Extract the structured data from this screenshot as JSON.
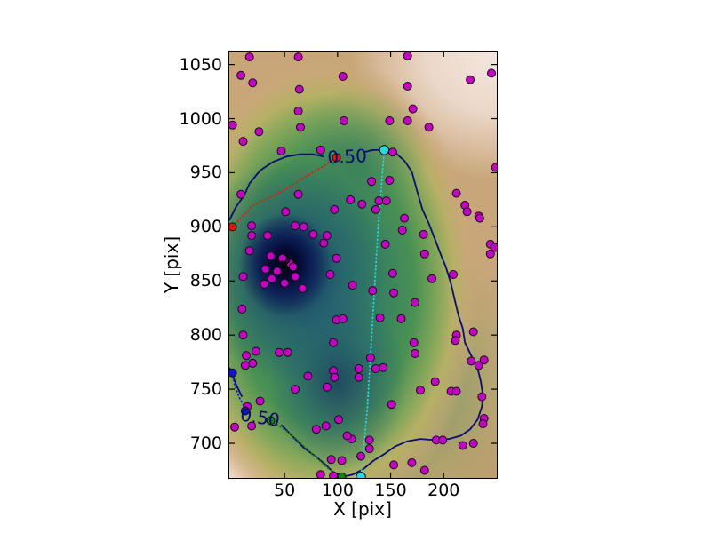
{
  "figure": {
    "background": "#ffffff"
  },
  "chart_data": {
    "type": "scatter",
    "title": "",
    "xlabel": "X [pix]",
    "ylabel": "Y [pix]",
    "xlim": [
      -2,
      250
    ],
    "ylim": [
      668,
      1062
    ],
    "x_ticks": [
      50,
      100,
      150,
      200
    ],
    "y_ticks": [
      700,
      750,
      800,
      850,
      900,
      950,
      1000,
      1050
    ],
    "grid": false,
    "legend": "none",
    "background_style": "2D kernel-density heatmap, gist_earth-reversed colormap (pink/tan = low density, green = mid, dark navy = high)",
    "density_peaks": [
      {
        "x": 51,
        "y": 865,
        "strength": "primary"
      },
      {
        "x": 100,
        "y": 760,
        "strength": "secondary"
      }
    ],
    "colors": {
      "point_fill": "#c303c3",
      "point_edge": "#1a0a1a",
      "contour": "#0c0c70",
      "contour_label": "#0c0c70",
      "red_marker": "#f21405",
      "cyan_marker": "#27d8e5",
      "blue_marker": "#1313cf",
      "green_marker": "#0f8510",
      "x_marker": "#000000",
      "axis": "#000000"
    },
    "points": [
      [
        17,
        1057
      ],
      [
        63,
        1057
      ],
      [
        9,
        1040
      ],
      [
        20,
        1033
      ],
      [
        64,
        1027
      ],
      [
        105,
        1039
      ],
      [
        63,
        1007
      ],
      [
        106,
        998
      ],
      [
        65,
        992
      ],
      [
        26,
        988
      ],
      [
        1,
        994
      ],
      [
        11,
        979
      ],
      [
        47,
        970
      ],
      [
        84,
        971
      ],
      [
        9,
        930
      ],
      [
        63,
        930
      ],
      [
        166,
        1058
      ],
      [
        225,
        1036
      ],
      [
        245,
        1042
      ],
      [
        166,
        1030
      ],
      [
        171,
        1009
      ],
      [
        149,
        998
      ],
      [
        166,
        998
      ],
      [
        186,
        992
      ],
      [
        152,
        969
      ],
      [
        132,
        942
      ],
      [
        149,
        943
      ],
      [
        212,
        931
      ],
      [
        220,
        920
      ],
      [
        233,
        910
      ],
      [
        244,
        884
      ],
      [
        248,
        881
      ],
      [
        249,
        955
      ],
      [
        228,
        803
      ],
      [
        51,
        914
      ],
      [
        97,
        916
      ],
      [
        112,
        925
      ],
      [
        123,
        921
      ],
      [
        19,
        901
      ],
      [
        60,
        901
      ],
      [
        68,
        900
      ],
      [
        77,
        893
      ],
      [
        19,
        892
      ],
      [
        34,
        892
      ],
      [
        90,
        892
      ],
      [
        87,
        885
      ],
      [
        17,
        878
      ],
      [
        37,
        873
      ],
      [
        48,
        871
      ],
      [
        55,
        866
      ],
      [
        58,
        863
      ],
      [
        32,
        861
      ],
      [
        43,
        859
      ],
      [
        38,
        852
      ],
      [
        50,
        848
      ],
      [
        60,
        854
      ],
      [
        11,
        854
      ],
      [
        31,
        847
      ],
      [
        67,
        843
      ],
      [
        99,
        871
      ],
      [
        93,
        856
      ],
      [
        114,
        846
      ],
      [
        10,
        824
      ],
      [
        99,
        814
      ],
      [
        105,
        815
      ],
      [
        11,
        800
      ],
      [
        139,
        924
      ],
      [
        146,
        924
      ],
      [
        136,
        916
      ],
      [
        222,
        914
      ],
      [
        234,
        908
      ],
      [
        163,
        908
      ],
      [
        161,
        897
      ],
      [
        181,
        893
      ],
      [
        145,
        884
      ],
      [
        182,
        875
      ],
      [
        244,
        875
      ],
      [
        152,
        857
      ],
      [
        189,
        852
      ],
      [
        209,
        856
      ],
      [
        133,
        841
      ],
      [
        153,
        839
      ],
      [
        173,
        830
      ],
      [
        140,
        816
      ],
      [
        160,
        815
      ],
      [
        212,
        800
      ],
      [
        14,
        781
      ],
      [
        23,
        785
      ],
      [
        45,
        784
      ],
      [
        53,
        784
      ],
      [
        96,
        793
      ],
      [
        20,
        774
      ],
      [
        13,
        772
      ],
      [
        96,
        767
      ],
      [
        120,
        769
      ],
      [
        72,
        762
      ],
      [
        97,
        761
      ],
      [
        120,
        761
      ],
      [
        90,
        752
      ],
      [
        60,
        750
      ],
      [
        27,
        739
      ],
      [
        15,
        734
      ],
      [
        3,
        715
      ],
      [
        19,
        716
      ],
      [
        80,
        713
      ],
      [
        89,
        716
      ],
      [
        101,
        722
      ],
      [
        113,
        704
      ],
      [
        109,
        707
      ],
      [
        94,
        685
      ],
      [
        104,
        684
      ],
      [
        122,
        688
      ],
      [
        84,
        671
      ],
      [
        96,
        670
      ],
      [
        131,
        779
      ],
      [
        172,
        793
      ],
      [
        211,
        795
      ],
      [
        173,
        783
      ],
      [
        136,
        769
      ],
      [
        143,
        770
      ],
      [
        226,
        776
      ],
      [
        233,
        772
      ],
      [
        238,
        777
      ],
      [
        192,
        757
      ],
      [
        178,
        749
      ],
      [
        207,
        748
      ],
      [
        212,
        748
      ],
      [
        236,
        743
      ],
      [
        151,
        736
      ],
      [
        238,
        723
      ],
      [
        237,
        718
      ],
      [
        193,
        703
      ],
      [
        199,
        703
      ],
      [
        218,
        698
      ],
      [
        228,
        700
      ],
      [
        130,
        703
      ],
      [
        130,
        695
      ],
      [
        153,
        680
      ],
      [
        170,
        682
      ],
      [
        182,
        675
      ]
    ],
    "contour": {
      "level": 0.5,
      "level_label": "0.50",
      "segments": [
        [
          [
            -2,
            906
          ],
          [
            4,
            918
          ],
          [
            12,
            929
          ],
          [
            17,
            940
          ],
          [
            27,
            952
          ],
          [
            39,
            960
          ],
          [
            52,
            965
          ],
          [
            65,
            967
          ],
          [
            77,
            967
          ],
          [
            87,
            965
          ]
        ],
        [
          [
            125,
            969
          ],
          [
            133,
            971
          ],
          [
            141,
            971
          ],
          [
            149,
            969
          ],
          [
            155,
            968
          ],
          [
            163,
            961
          ],
          [
            170,
            951
          ],
          [
            175,
            933
          ],
          [
            180,
            916
          ],
          [
            186,
            903
          ],
          [
            192,
            888
          ],
          [
            197,
            875
          ],
          [
            202,
            863
          ],
          [
            207,
            847
          ],
          [
            211,
            830
          ],
          [
            214,
            818
          ],
          [
            218,
            806
          ],
          [
            220,
            793
          ],
          [
            226,
            781
          ],
          [
            232,
            769
          ],
          [
            235,
            757
          ],
          [
            237,
            744
          ],
          [
            236,
            734
          ],
          [
            232,
            722
          ],
          [
            225,
            713
          ],
          [
            216,
            707
          ],
          [
            205,
            704
          ],
          [
            192,
            703
          ],
          [
            178,
            704
          ],
          [
            166,
            702
          ],
          [
            154,
            697
          ],
          [
            144,
            690
          ],
          [
            134,
            684
          ],
          [
            124,
            676
          ],
          [
            114,
            671
          ],
          [
            105,
            669
          ],
          [
            98,
            671
          ],
          [
            89,
            680
          ],
          [
            79,
            688
          ],
          [
            68,
            696
          ],
          [
            59,
            705
          ],
          [
            52,
            712
          ],
          [
            47,
            717
          ]
        ],
        [
          [
            10,
            743
          ],
          [
            5,
            753
          ],
          [
            1,
            763
          ],
          [
            -2,
            770
          ]
        ]
      ],
      "labels": [
        {
          "x": 109,
          "y": 965,
          "rotation": -3
        },
        {
          "x": 27,
          "y": 724,
          "rotation": 9
        }
      ]
    },
    "trajectories": [
      {
        "name": "red-path",
        "color": "#f21405",
        "points": [
          [
            1,
            900
          ],
          [
            19,
            919
          ],
          [
            50,
            934
          ],
          [
            71,
            947
          ],
          [
            88,
            957
          ],
          [
            99,
            964
          ]
        ]
      },
      {
        "name": "cyan-path",
        "color": "#27d8e5",
        "points": [
          [
            144,
            971
          ],
          [
            138,
            896
          ],
          [
            133,
            814
          ],
          [
            128,
            732
          ],
          [
            122,
            669
          ]
        ]
      },
      {
        "name": "blue-path",
        "color": "#1313cf",
        "points": [
          [
            1,
            765
          ],
          [
            3,
            754
          ],
          [
            7,
            743
          ],
          [
            11,
            736
          ],
          [
            13,
            730
          ]
        ]
      },
      {
        "name": "green-path",
        "color": "#0f8510",
        "points": [
          [
            37,
            721
          ],
          [
            51,
            712
          ],
          [
            60,
            705
          ],
          [
            71,
            695
          ],
          [
            82,
            685
          ],
          [
            92,
            676
          ],
          [
            104,
            669
          ]
        ]
      }
    ],
    "endpoint_markers": [
      {
        "x": 1,
        "y": 900,
        "color": "#f21405",
        "r": 4.5,
        "name": "red-dot-start"
      },
      {
        "x": 99,
        "y": 964,
        "color": "#f21405",
        "r": 4.5,
        "name": "red-dot-end"
      },
      {
        "x": 144,
        "y": 971,
        "color": "#27d8e5",
        "r": 5.2,
        "name": "cyan-dot-start"
      },
      {
        "x": 122,
        "y": 669,
        "color": "#27d8e5",
        "r": 5.2,
        "name": "cyan-dot-end"
      },
      {
        "x": 1,
        "y": 765,
        "color": "#1313cf",
        "r": 4.5,
        "name": "blue-dot-start"
      },
      {
        "x": 13,
        "y": 730,
        "color": "#1313cf",
        "r": 4.5,
        "name": "blue-dot-end"
      },
      {
        "x": 37,
        "y": 721,
        "color": "#0f8510",
        "r": 4.5,
        "name": "green-dot-start"
      },
      {
        "x": 104,
        "y": 669,
        "color": "#0f8510",
        "r": 4.5,
        "name": "green-dot-end"
      }
    ],
    "x_marker": {
      "x": 51,
      "y": 865,
      "size": 4.5
    }
  }
}
